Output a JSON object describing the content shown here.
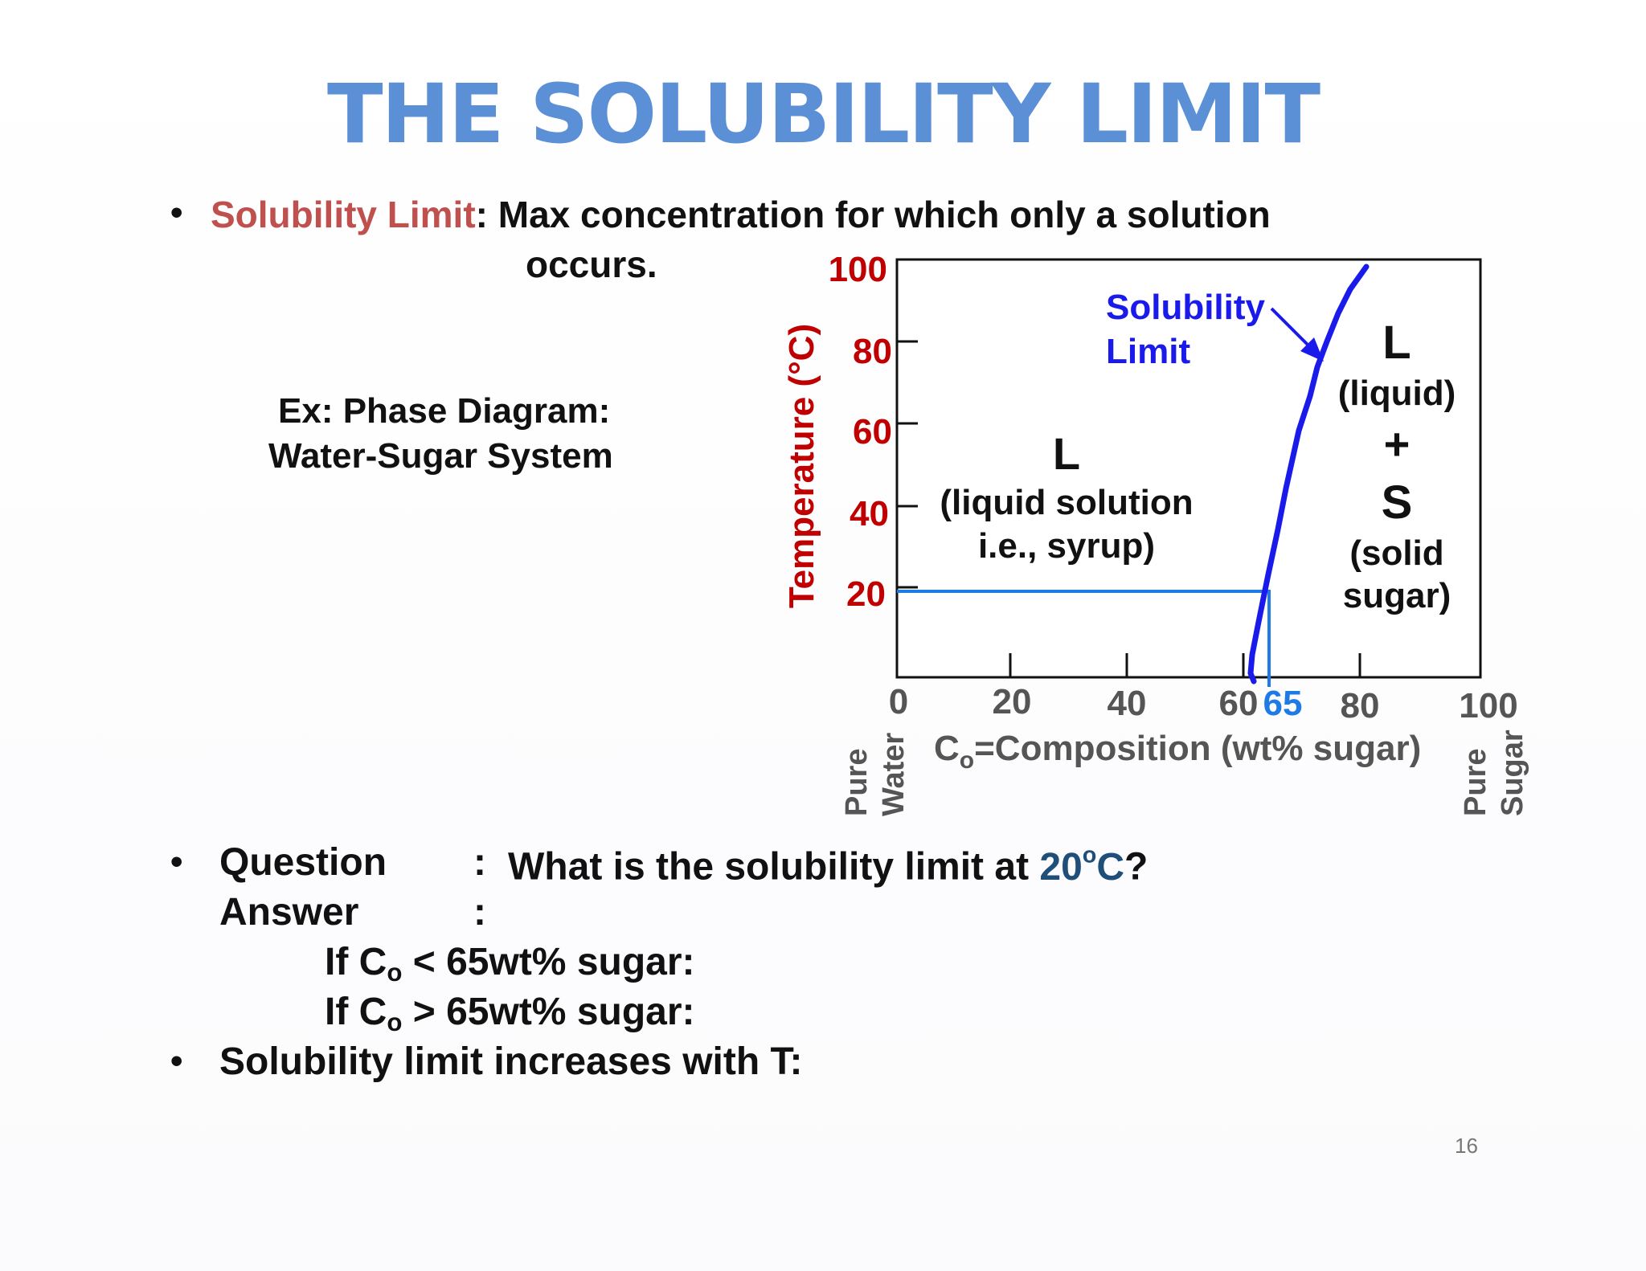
{
  "slide": {
    "title": "THE SOLUBILITY LIMIT",
    "page_number": "16",
    "bullet1": {
      "term": "Solubility Limit",
      "definition": ": Max concentration for  which only a solution",
      "definition_cont": "occurs."
    },
    "example": {
      "line1": "Ex:  Phase Diagram:",
      "line2": "Water-Sugar System"
    },
    "question": {
      "label": "Question",
      "colon": ":",
      "text": "What is the solubility limit at ",
      "temp": "20",
      "temp_unit_sup": "o",
      "temp_unit": "C",
      "qmark": "?"
    },
    "answer": {
      "label": "Answer",
      "colon": ":",
      "if1_prefix": "If C",
      "if1_sub": "o",
      "if1_rest": " < 65wt% sugar:",
      "if2_prefix": "If C",
      "if2_sub": "o",
      "if2_rest": " > 65wt% sugar:"
    },
    "bullet3": "Solubility limit increases with T:"
  },
  "diagram": {
    "y_axis_label": "Temperature (°C)",
    "y_ticks": [
      "100",
      "80",
      "60",
      "40",
      "20"
    ],
    "x_ticks": [
      "0",
      "20",
      "40",
      "60",
      "80",
      "100"
    ],
    "x_highlight_tick": "65",
    "x_label_prefix": "C",
    "x_label_sub": "o",
    "x_label_rest": "=Composition (wt% sugar)",
    "left_end_label": [
      "Pure",
      "Water"
    ],
    "right_end_label": [
      "Pure",
      "Sugar"
    ],
    "region_left": {
      "symbol": "L",
      "line1": "(liquid solution",
      "line2": "i.e., syrup)"
    },
    "region_right": {
      "symbol1": "L",
      "line1": "(liquid)",
      "plus": "+",
      "symbol2": "S",
      "line2": "(solid",
      "line3": "sugar)"
    },
    "curve_label": [
      "Solubility",
      "Limit"
    ],
    "colors": {
      "axis_ticks_y": "#c00000",
      "axis_ticks_x": "#555555",
      "curve": "#1a1aeb",
      "guide": "#1e7be6",
      "title": "#5b8fd6",
      "term": "#c0504d"
    }
  }
}
